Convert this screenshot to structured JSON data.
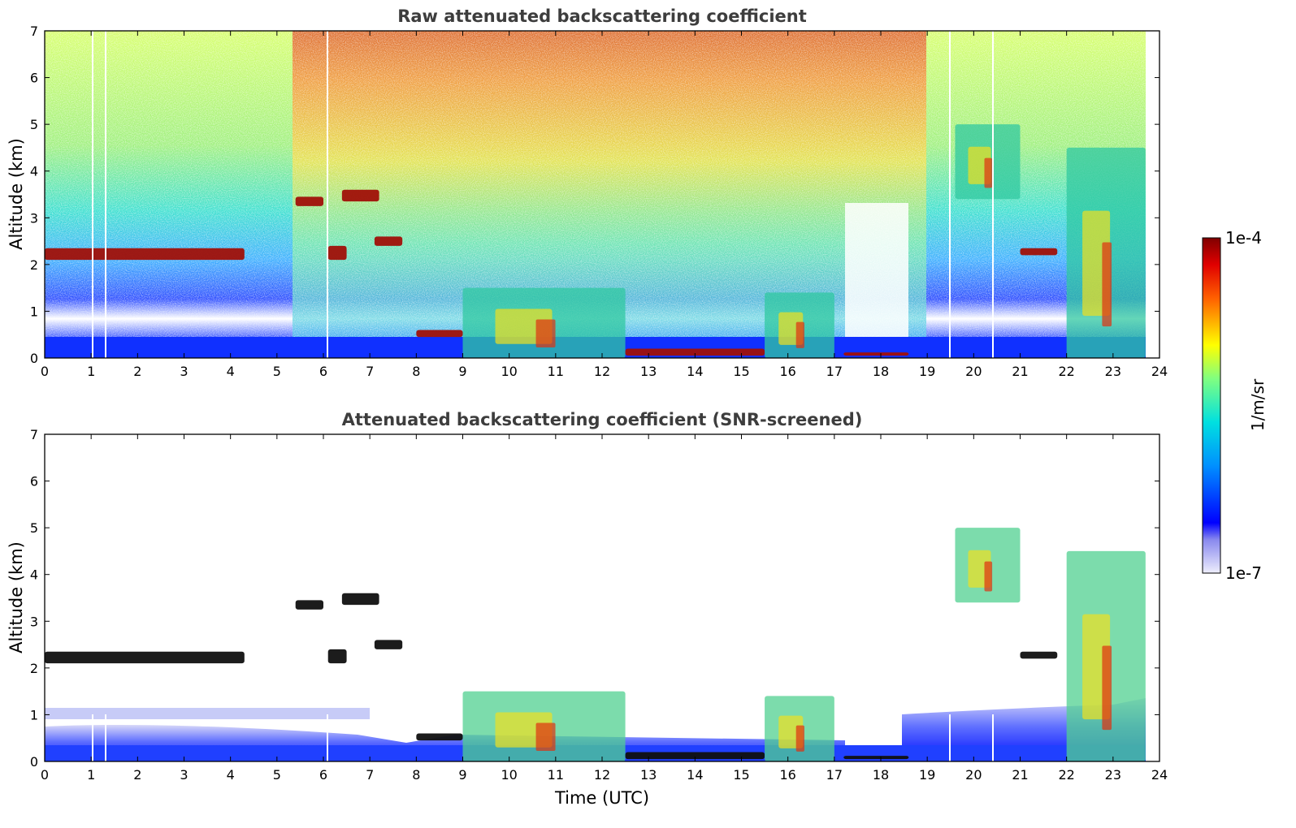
{
  "chart_data": [
    {
      "type": "heatmap",
      "title": "Raw attenuated backscattering coefficient",
      "xlabel": "",
      "ylabel": "Altitude (km)",
      "xlim": [
        0,
        24
      ],
      "ylim": [
        0,
        7
      ],
      "xticks": [
        "0",
        "1",
        "2",
        "3",
        "4",
        "5",
        "6",
        "7",
        "8",
        "9",
        "10",
        "11",
        "12",
        "13",
        "14",
        "15",
        "16",
        "17",
        "18",
        "19",
        "20",
        "21",
        "22",
        "23",
        "24"
      ],
      "yticks": [
        "0",
        "1",
        "2",
        "3",
        "4",
        "5",
        "6",
        "7"
      ],
      "data_end_x": 23.7,
      "layers": [
        {
          "x": [
            0,
            4.3
          ],
          "y": [
            2.1,
            2.35
          ],
          "level": "high"
        },
        {
          "x": [
            5.4,
            6.0
          ],
          "y": [
            3.25,
            3.45
          ],
          "level": "high"
        },
        {
          "x": [
            6.4,
            7.2
          ],
          "y": [
            3.35,
            3.6
          ],
          "level": "high"
        },
        {
          "x": [
            6.1,
            6.5
          ],
          "y": [
            2.1,
            2.4
          ],
          "level": "high"
        },
        {
          "x": [
            7.1,
            7.7
          ],
          "y": [
            2.4,
            2.6
          ],
          "level": "high"
        },
        {
          "x": [
            8.0,
            9.0
          ],
          "y": [
            0.45,
            0.6
          ],
          "level": "high"
        },
        {
          "x": [
            9.0,
            12.5
          ],
          "y": [
            0.0,
            1.5
          ],
          "level": "mid"
        },
        {
          "x": [
            12.5,
            15.5
          ],
          "y": [
            0.05,
            0.2
          ],
          "level": "high"
        },
        {
          "x": [
            15.5,
            17.0
          ],
          "y": [
            0.0,
            1.4
          ],
          "level": "mid"
        },
        {
          "x": [
            17.2,
            18.6
          ],
          "y": [
            0.05,
            0.12
          ],
          "level": "high"
        },
        {
          "x": [
            19.6,
            21.0
          ],
          "y": [
            3.4,
            5.0
          ],
          "level": "mid"
        },
        {
          "x": [
            21.0,
            21.8
          ],
          "y": [
            2.2,
            2.35
          ],
          "level": "high"
        },
        {
          "x": [
            22.0,
            23.7
          ],
          "y": [
            0.0,
            4.5
          ],
          "level": "mid"
        }
      ]
    },
    {
      "type": "heatmap",
      "title": "Attenuated backscattering coefficient (SNR-screened)",
      "xlabel": "Time (UTC)",
      "ylabel": "Altitude (km)",
      "xlim": [
        0,
        24
      ],
      "ylim": [
        0,
        7
      ],
      "xticks": [
        "0",
        "1",
        "2",
        "3",
        "4",
        "5",
        "6",
        "7",
        "8",
        "9",
        "10",
        "11",
        "12",
        "13",
        "14",
        "15",
        "16",
        "17",
        "18",
        "19",
        "20",
        "21",
        "22",
        "23",
        "24"
      ],
      "yticks": [
        "0",
        "1",
        "2",
        "3",
        "4",
        "5",
        "6",
        "7"
      ],
      "data_end_x": 23.7
    }
  ],
  "colorbar": {
    "label": "1/m/sr",
    "max_label": "1e-4",
    "min_label": "1e-7",
    "scale": "log",
    "range": [
      1e-07,
      0.0001
    ],
    "colormap": "jet",
    "colors": [
      "#e8e8fa",
      "#0000ff",
      "#00a0ff",
      "#00e0e0",
      "#80ff80",
      "#ffff00",
      "#ff8000",
      "#ff0000",
      "#800000"
    ]
  }
}
